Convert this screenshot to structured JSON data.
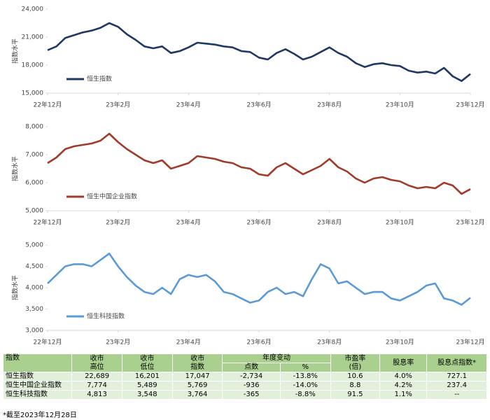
{
  "chart_data": [
    {
      "type": "line",
      "y_label": "指数水平",
      "x": [
        0,
        0.25,
        0.5,
        0.75,
        1,
        1.25,
        1.5,
        1.75,
        2,
        2.25,
        2.5,
        2.75,
        3,
        3.25,
        3.5,
        3.75,
        4,
        4.25,
        4.5,
        4.75,
        5,
        5.25,
        5.5,
        5.75,
        6,
        6.25,
        6.5,
        6.75,
        7,
        7.25,
        7.5,
        7.75,
        8,
        8.25,
        8.5,
        8.75,
        9,
        9.25,
        9.5,
        9.75,
        10,
        10.25,
        10.5,
        10.75,
        11,
        11.25,
        11.5,
        11.75,
        12
      ],
      "xlim": [
        0,
        12
      ],
      "xticks": [
        {
          "value": 0,
          "label": "22年12月"
        },
        {
          "value": 2,
          "label": "23年2月"
        },
        {
          "value": 4,
          "label": "23年4月"
        },
        {
          "value": 6,
          "label": "23年6月"
        },
        {
          "value": 8,
          "label": "23年8月"
        },
        {
          "value": 10,
          "label": "23年10月"
        },
        {
          "value": 12,
          "label": "23年12月"
        }
      ],
      "ylim": [
        15000,
        24000
      ],
      "yticks": [
        {
          "value": 15000,
          "label": "15,000"
        },
        {
          "value": 18000,
          "label": "18,000"
        },
        {
          "value": 21000,
          "label": "21,000"
        },
        {
          "value": 24000,
          "label": "24,000"
        }
      ],
      "series": [
        {
          "name": "恒生指数",
          "color": "#1f3864",
          "values": [
            19600,
            20000,
            20900,
            21200,
            21500,
            21700,
            22000,
            22500,
            22100,
            21300,
            20700,
            20000,
            19800,
            20000,
            19300,
            19500,
            19900,
            20400,
            20300,
            20200,
            20000,
            19900,
            19500,
            19400,
            18800,
            18600,
            19300,
            19700,
            19200,
            18600,
            18900,
            19400,
            19900,
            19300,
            18900,
            18200,
            17800,
            18100,
            18200,
            18000,
            17900,
            17400,
            17200,
            17300,
            17100,
            17700,
            16800,
            16300,
            17047
          ]
        }
      ]
    },
    {
      "type": "line",
      "y_label": "指数水平",
      "x": [
        0,
        0.25,
        0.5,
        0.75,
        1,
        1.25,
        1.5,
        1.75,
        2,
        2.25,
        2.5,
        2.75,
        3,
        3.25,
        3.5,
        3.75,
        4,
        4.25,
        4.5,
        4.75,
        5,
        5.25,
        5.5,
        5.75,
        6,
        6.25,
        6.5,
        6.75,
        7,
        7.25,
        7.5,
        7.75,
        8,
        8.25,
        8.5,
        8.75,
        9,
        9.25,
        9.5,
        9.75,
        10,
        10.25,
        10.5,
        10.75,
        11,
        11.25,
        11.5,
        11.75,
        12
      ],
      "xlim": [
        0,
        12
      ],
      "xticks": [
        {
          "value": 0,
          "label": "22年12月"
        },
        {
          "value": 2,
          "label": "23年2月"
        },
        {
          "value": 4,
          "label": "23年4月"
        },
        {
          "value": 6,
          "label": "23年6月"
        },
        {
          "value": 8,
          "label": "23年8月"
        },
        {
          "value": 10,
          "label": "23年10月"
        },
        {
          "value": 12,
          "label": "23年12月"
        }
      ],
      "ylim": [
        5000,
        8000
      ],
      "yticks": [
        {
          "value": 5000,
          "label": "5,000"
        },
        {
          "value": 6000,
          "label": "6,000"
        },
        {
          "value": 7000,
          "label": "7,000"
        },
        {
          "value": 8000,
          "label": "8,000"
        }
      ],
      "series": [
        {
          "name": "恒生中国企业指数",
          "color": "#a23a2a",
          "values": [
            6700,
            6900,
            7200,
            7300,
            7350,
            7400,
            7500,
            7750,
            7450,
            7200,
            7000,
            6800,
            6700,
            6800,
            6500,
            6600,
            6700,
            6950,
            6900,
            6850,
            6750,
            6700,
            6550,
            6500,
            6300,
            6250,
            6550,
            6700,
            6500,
            6300,
            6450,
            6600,
            6850,
            6550,
            6400,
            6150,
            6000,
            6150,
            6200,
            6100,
            6050,
            5900,
            5800,
            5850,
            5800,
            6000,
            5900,
            5600,
            5769
          ]
        }
      ]
    },
    {
      "type": "line",
      "y_label": "指数水平",
      "x": [
        0,
        0.25,
        0.5,
        0.75,
        1,
        1.25,
        1.5,
        1.75,
        2,
        2.25,
        2.5,
        2.75,
        3,
        3.25,
        3.5,
        3.75,
        4,
        4.25,
        4.5,
        4.75,
        5,
        5.25,
        5.5,
        5.75,
        6,
        6.25,
        6.5,
        6.75,
        7,
        7.25,
        7.5,
        7.75,
        8,
        8.25,
        8.5,
        8.75,
        9,
        9.25,
        9.5,
        9.75,
        10,
        10.25,
        10.5,
        10.75,
        11,
        11.25,
        11.5,
        11.75,
        12
      ],
      "xlim": [
        0,
        12
      ],
      "xticks": [
        {
          "value": 0,
          "label": "22年12月"
        },
        {
          "value": 2,
          "label": "23年2月"
        },
        {
          "value": 4,
          "label": "23年4月"
        },
        {
          "value": 6,
          "label": "23年6月"
        },
        {
          "value": 8,
          "label": "23年8月"
        },
        {
          "value": 10,
          "label": "23年10月"
        },
        {
          "value": 12,
          "label": "23年12月"
        }
      ],
      "ylim": [
        3000,
        5000
      ],
      "yticks": [
        {
          "value": 3000,
          "label": "3,000"
        },
        {
          "value": 3500,
          "label": "3,500"
        },
        {
          "value": 4000,
          "label": "4,000"
        },
        {
          "value": 4500,
          "label": "4,500"
        },
        {
          "value": 5000,
          "label": "5,000"
        }
      ],
      "series": [
        {
          "name": "恒生科技指数",
          "color": "#5b9bd5",
          "values": [
            4100,
            4300,
            4500,
            4550,
            4550,
            4500,
            4650,
            4800,
            4500,
            4250,
            4050,
            3900,
            3850,
            4000,
            3850,
            4200,
            4300,
            4250,
            4300,
            4150,
            3900,
            3850,
            3750,
            3650,
            3700,
            3900,
            4000,
            3850,
            3900,
            3800,
            4200,
            4550,
            4450,
            4100,
            4150,
            4000,
            3850,
            3900,
            3900,
            3750,
            3700,
            3800,
            3900,
            4050,
            4100,
            3750,
            3700,
            3600,
            3764
          ]
        }
      ]
    }
  ],
  "table": {
    "header": [
      [
        "指数"
      ],
      [
        "收市",
        "高位"
      ],
      [
        "收市",
        "低位"
      ],
      [
        "收市",
        "指数"
      ],
      [
        "年度变动"
      ],
      [
        "市盈率",
        "(倍)"
      ],
      [
        "股息率"
      ],
      [
        "股息点指数*"
      ]
    ],
    "subheader": [
      "点数",
      "%"
    ],
    "rows": [
      [
        "恒生指数",
        "22,689",
        "16,201",
        "17,047",
        "-2,734",
        "-13.8%",
        "10.6",
        "4.0%",
        "727.1"
      ],
      [
        "恒生中国企业指数",
        "7,774",
        "5,489",
        "5,769",
        "-936",
        "-14.0%",
        "8.8",
        "4.2%",
        "237.4"
      ],
      [
        "恒生科技指数",
        "4,813",
        "3,548",
        "3,764",
        "-365",
        "-8.8%",
        "91.5",
        "1.1%",
        "--"
      ]
    ]
  },
  "footnote": "*截至2023年12月28日"
}
